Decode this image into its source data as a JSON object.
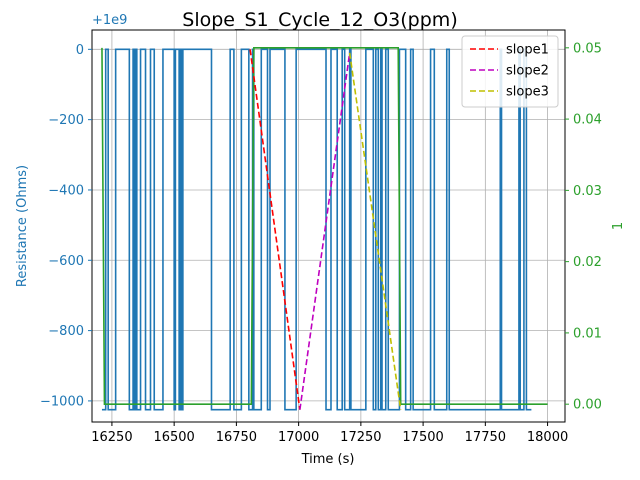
{
  "chart_data": {
    "type": "line",
    "title": "Slope_S1_Cycle_12_O3(ppm)",
    "xlabel": "Time (s)",
    "ylabel_left": "Resistance (Ohms)",
    "ylabel_right": "1",
    "offset_text": "+1e9",
    "xlim": [
      16170,
      18070
    ],
    "ylim_left": [
      -1060,
      55
    ],
    "ylim_right": [
      -0.0025,
      0.0525
    ],
    "x_ticks": [
      16250,
      16500,
      16750,
      17000,
      17250,
      17500,
      17750,
      18000
    ],
    "x_tick_labels": [
      "16250",
      "16500",
      "16750",
      "17000",
      "17250",
      "17500",
      "17750",
      "18000"
    ],
    "y_left_ticks": [
      0,
      -200,
      -400,
      -600,
      -800,
      -1000
    ],
    "y_left_tick_labels": [
      "0",
      "−200",
      "−400",
      "−600",
      "−800",
      "−1000"
    ],
    "y_right_ticks": [
      0.0,
      0.01,
      0.02,
      0.03,
      0.04,
      0.05
    ],
    "y_right_tick_labels": [
      "0.00",
      "0.01",
      "0.02",
      "0.03",
      "0.04",
      "0.05"
    ],
    "grid": true,
    "legend_position": "top-right",
    "colors": {
      "resistance": "#1f77b4",
      "concentration": "#2ca02c",
      "slope1": "#ff0000",
      "slope2": "#bf00bf",
      "slope3": "#bfbf00"
    },
    "series": [
      {
        "name": "",
        "axis": "left",
        "style": "solid",
        "color_key": "resistance",
        "x": [
          16210,
          16225,
          16225,
          16235,
          16235,
          16265,
          16265,
          16320,
          16320,
          16335,
          16335,
          16340,
          16340,
          16345,
          16345,
          16350,
          16350,
          16365,
          16365,
          16385,
          16385,
          16405,
          16405,
          16420,
          16420,
          16455,
          16455,
          16500,
          16500,
          16505,
          16505,
          16520,
          16520,
          16525,
          16525,
          16530,
          16530,
          16535,
          16535,
          16650,
          16650,
          16725,
          16725,
          16740,
          16740,
          16770,
          16770,
          16800,
          16800,
          16815,
          16815,
          16820,
          16820,
          16850,
          16850,
          16875,
          16875,
          16885,
          16885,
          16945,
          16945,
          16990,
          16990,
          17110,
          17110,
          17130,
          17130,
          17155,
          17155,
          17175,
          17175,
          17185,
          17185,
          17205,
          17205,
          17210,
          17210,
          17270,
          17270,
          17300,
          17300,
          17310,
          17310,
          17320,
          17320,
          17330,
          17330,
          17335,
          17335,
          17350,
          17350,
          17360,
          17360,
          17405,
          17405,
          17430,
          17430,
          17450,
          17450,
          17460,
          17460,
          17530,
          17530,
          17545,
          17545,
          17595,
          17595,
          17605,
          17605,
          17810,
          17810,
          17815,
          17815,
          17885,
          17885,
          17890,
          17890,
          17905,
          17905,
          17915,
          17915,
          17935
        ],
        "values": [
          -1025,
          -1025,
          0,
          0,
          -1025,
          -1025,
          0,
          0,
          -1025,
          -1025,
          0,
          0,
          -1025,
          -1025,
          0,
          0,
          -1025,
          -1025,
          0,
          0,
          -1025,
          -1025,
          0,
          0,
          -1025,
          -1025,
          0,
          0,
          -1025,
          -1025,
          0,
          0,
          -1025,
          -1025,
          0,
          0,
          -1025,
          -1025,
          0,
          0,
          -1025,
          -1025,
          0,
          0,
          -1025,
          -1025,
          0,
          0,
          -1025,
          -1025,
          0,
          0,
          -1025,
          -1025,
          0,
          0,
          -1025,
          -1025,
          0,
          0,
          -1025,
          -1025,
          0,
          0,
          -1025,
          -1025,
          0,
          0,
          -1025,
          -1025,
          0,
          0,
          -1025,
          -1025,
          0,
          0,
          -1025,
          -1025,
          0,
          0,
          -1025,
          -1025,
          0,
          0,
          -1025,
          -1025,
          0,
          0,
          -1025,
          -1025,
          0,
          0,
          -1025,
          -1025,
          0,
          0,
          -1025,
          -1025,
          0,
          0,
          -1025,
          -1025,
          0,
          0,
          -1025,
          -1025,
          0,
          0,
          -1025,
          -1025,
          0,
          0,
          -1025,
          -1025,
          0,
          0,
          -1025,
          -1025,
          0,
          0,
          -1025,
          -1025
        ]
      },
      {
        "name": "",
        "axis": "right",
        "style": "solid",
        "color_key": "concentration",
        "x": [
          16210,
          16220,
          16220,
          16810,
          16820,
          17400,
          17410,
          18000
        ],
        "values": [
          0.05,
          0.0,
          0.0,
          0.0,
          0.05,
          0.05,
          0.0,
          0.0
        ]
      },
      {
        "name": "slope1",
        "axis": "left",
        "style": "dashed",
        "color_key": "slope1",
        "x": [
          16805,
          17005
        ],
        "values": [
          0,
          -1025
        ]
      },
      {
        "name": "slope2",
        "axis": "left",
        "style": "dashed",
        "color_key": "slope2",
        "x": [
          17005,
          17205
        ],
        "values": [
          -1025,
          -10
        ]
      },
      {
        "name": "slope3",
        "axis": "left",
        "style": "dashed",
        "color_key": "slope3",
        "x": [
          17205,
          17410
        ],
        "values": [
          -10,
          -1025
        ]
      }
    ]
  }
}
